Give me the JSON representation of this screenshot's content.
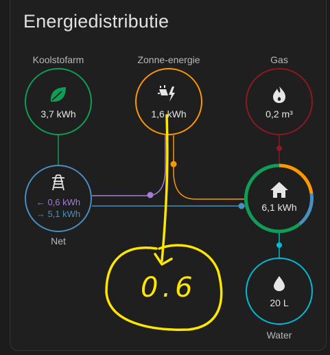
{
  "card": {
    "title": "Energiedistributie"
  },
  "nodes": {
    "carbon": {
      "label": "Koolstofarm",
      "value": "3,7 kWh",
      "color": "#0f9d58",
      "icon": "leaf-icon"
    },
    "solar": {
      "label": "Zonne-energie",
      "value": "1,6 kWh",
      "color": "#ff9800",
      "icon": "solar-power-icon"
    },
    "gas": {
      "label": "Gas",
      "value": "0,2 m³",
      "color": "#8e1824",
      "icon": "fire-icon"
    },
    "grid": {
      "label": "Net",
      "import": "← 0,6 kWh",
      "export": "→ 5,1 kWh",
      "color": "#488fc2",
      "icon": "transmission-tower-icon"
    },
    "home": {
      "value": "6,1 kWh",
      "icon": "home-icon"
    },
    "water": {
      "label": "Water",
      "value": "20 L",
      "color": "#00bcd4",
      "icon": "water-drop-icon"
    }
  },
  "annotation": {
    "text": "0.6",
    "color": "#ffe600"
  }
}
